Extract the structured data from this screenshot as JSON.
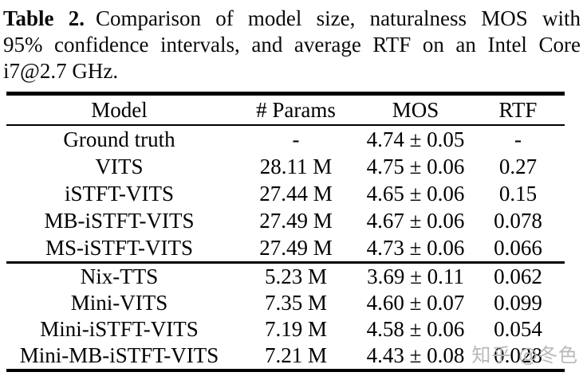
{
  "caption": {
    "label": "Table 2.",
    "line1": "Comparison of model size, naturalness MOS with",
    "line2": "95% confidence intervals, and average RTF on an Intel Core",
    "line3": "i7@2.7 GHz."
  },
  "table": {
    "columns": [
      "Model",
      "# Params",
      "MOS",
      "RTF"
    ],
    "group1": [
      {
        "model": "Ground truth",
        "params": "-",
        "mos": "4.74 ± 0.05",
        "rtf": "-"
      },
      {
        "model": "VITS",
        "params": "28.11 M",
        "mos": "4.75 ± 0.06",
        "rtf": "0.27"
      },
      {
        "model": "iSTFT-VITS",
        "params": "27.44 M",
        "mos": "4.65 ± 0.06",
        "rtf": "0.15"
      },
      {
        "model": "MB-iSTFT-VITS",
        "params": "27.49 M",
        "mos": "4.67 ± 0.06",
        "rtf": "0.078"
      },
      {
        "model": "MS-iSTFT-VITS",
        "params": "27.49 M",
        "mos": "4.73 ± 0.06",
        "rtf": "0.066"
      }
    ],
    "group2": [
      {
        "model": "Nix-TTS",
        "params": "5.23 M",
        "mos": "3.69 ± 0.11",
        "rtf": "0.062"
      },
      {
        "model": "Mini-VITS",
        "params": "7.35 M",
        "mos": "4.60 ± 0.07",
        "rtf": "0.099"
      },
      {
        "model": "Mini-iSTFT-VITS",
        "params": "7.19 M",
        "mos": "4.58 ± 0.06",
        "rtf": "0.054"
      },
      {
        "model": "Mini-MB-iSTFT-VITS",
        "params": "7.21 M",
        "mos": "4.43 ± 0.08",
        "rtf": "0.028"
      }
    ]
  },
  "watermark": {
    "text": "知乎 @冬色",
    "color": "#b9b9b9"
  },
  "colors": {
    "text": "#000000",
    "background": "#ffffff",
    "rule": "#000000"
  }
}
